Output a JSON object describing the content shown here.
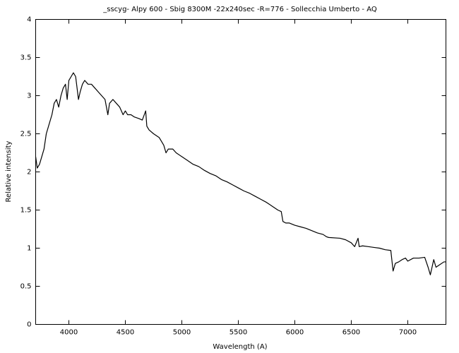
{
  "chart_data": {
    "type": "line",
    "title": "_sscyg- Alpy 600 - Sbig 8300M -22x240sec -R=776 - Sollecchia Umberto - AQ",
    "x_label": "Wavelength (A)",
    "y_label": "Relative intensity",
    "color": "#000000",
    "x": [
      3706,
      3720,
      3740,
      3760,
      3780,
      3800,
      3820,
      3850,
      3870,
      3890,
      3910,
      3930,
      3950,
      3970,
      3985,
      4000,
      4020,
      4040,
      4060,
      4085,
      4100,
      4120,
      4140,
      4170,
      4200,
      4230,
      4260,
      4290,
      4320,
      4345,
      4360,
      4390,
      4420,
      4450,
      4480,
      4500,
      4520,
      4550,
      4580,
      4620,
      4650,
      4680,
      4690,
      4710,
      4750,
      4800,
      4840,
      4860,
      4880,
      4920,
      4950,
      5000,
      5050,
      5100,
      5150,
      5200,
      5250,
      5300,
      5350,
      5400,
      5450,
      5500,
      5550,
      5600,
      5650,
      5700,
      5750,
      5800,
      5850,
      5880,
      5895,
      5920,
      5950,
      6000,
      6050,
      6100,
      6150,
      6200,
      6250,
      6280,
      6300,
      6400,
      6450,
      6500,
      6530,
      6560,
      6570,
      6600,
      6650,
      6700,
      6750,
      6800,
      6850,
      6870,
      6890,
      6920,
      6950,
      6980,
      7000,
      7050,
      7100,
      7150,
      7180,
      7200,
      7230,
      7250,
      7280,
      7320,
      7338
    ],
    "values": [
      2.2,
      2.05,
      2.1,
      2.2,
      2.3,
      2.5,
      2.6,
      2.75,
      2.9,
      2.95,
      2.85,
      3.0,
      3.1,
      3.15,
      2.95,
      3.2,
      3.25,
      3.3,
      3.25,
      2.95,
      3.05,
      3.15,
      3.2,
      3.15,
      3.15,
      3.1,
      3.05,
      3.0,
      2.95,
      2.75,
      2.9,
      2.95,
      2.9,
      2.85,
      2.75,
      2.8,
      2.75,
      2.75,
      2.72,
      2.7,
      2.68,
      2.8,
      2.6,
      2.55,
      2.5,
      2.45,
      2.35,
      2.25,
      2.3,
      2.3,
      2.25,
      2.2,
      2.15,
      2.1,
      2.07,
      2.02,
      1.98,
      1.95,
      1.9,
      1.87,
      1.83,
      1.79,
      1.75,
      1.72,
      1.68,
      1.64,
      1.6,
      1.55,
      1.5,
      1.48,
      1.35,
      1.33,
      1.33,
      1.3,
      1.28,
      1.26,
      1.23,
      1.2,
      1.18,
      1.15,
      1.14,
      1.13,
      1.11,
      1.07,
      1.02,
      1.13,
      1.02,
      1.03,
      1.02,
      1.01,
      1.0,
      0.98,
      0.97,
      0.7,
      0.8,
      0.82,
      0.85,
      0.87,
      0.83,
      0.87,
      0.87,
      0.88,
      0.75,
      0.65,
      0.85,
      0.75,
      0.78,
      0.82,
      0.82
    ],
    "xlim": [
      3706,
      7338
    ],
    "xticks": [
      4000,
      4500,
      5000,
      5500,
      6000,
      6500,
      7000
    ],
    "ylim": [
      0,
      4
    ],
    "yticks": [
      0,
      0.5,
      1,
      1.5,
      2,
      2.5,
      3,
      3.5,
      4
    ]
  }
}
